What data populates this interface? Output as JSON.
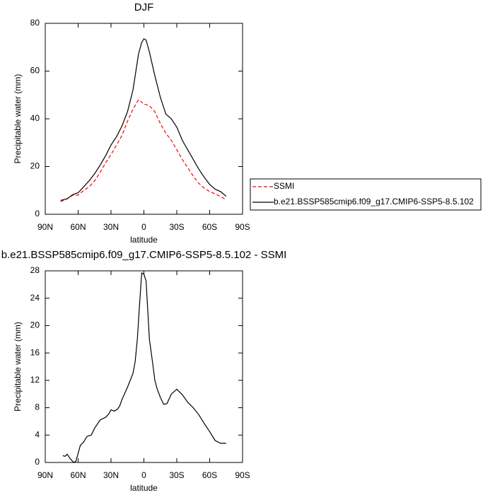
{
  "chart_data": [
    {
      "type": "line",
      "title": "DJF",
      "xlabel": "latitude",
      "ylabel": "Precipitable water (mm)",
      "x": [
        76,
        70,
        65,
        60,
        55,
        50,
        45,
        40,
        35,
        30,
        25,
        20,
        15,
        10,
        5,
        2,
        0,
        -2,
        -5,
        -10,
        -15,
        -20,
        -25,
        -30,
        -35,
        -40,
        -45,
        -50,
        -55,
        -60,
        -65,
        -70,
        -75
      ],
      "xlim": [
        90,
        -90
      ],
      "xticks": [
        {
          "value": 90,
          "label": "90N"
        },
        {
          "value": 60,
          "label": "60N"
        },
        {
          "value": 30,
          "label": "30N"
        },
        0,
        {
          "value": -30,
          "label": "30S"
        },
        {
          "value": -60,
          "label": "60S"
        },
        {
          "value": -90,
          "label": "90S"
        }
      ],
      "ylim": [
        0,
        80
      ],
      "yticks": [
        0,
        20,
        40,
        60,
        80
      ],
      "legend": "right",
      "series": [
        {
          "name": "SSMI",
          "color": "#ff0000",
          "line_style": "dashed",
          "values": [
            5.3,
            6.5,
            8,
            8,
            10,
            11.5,
            14,
            17.5,
            21.5,
            25,
            29,
            33,
            39,
            44,
            48,
            47,
            46,
            46,
            45.5,
            43,
            38,
            34,
            31,
            27,
            23,
            19.5,
            16,
            13,
            11,
            9.5,
            8.5,
            7.5,
            6
          ]
        },
        {
          "name": "b.e21.BSSP585cmip6.f09_g17.CMIP6-SSP5-8.5.102",
          "color": "#000000",
          "line_style": "solid",
          "values": [
            5.8,
            6.5,
            8.2,
            9,
            11.5,
            14,
            17,
            20.5,
            24.5,
            29,
            32.5,
            37,
            43,
            52,
            67,
            72,
            73.5,
            73,
            68,
            58,
            49,
            42,
            40,
            36.5,
            31,
            27,
            23,
            19,
            15.5,
            12.5,
            10.5,
            9.5,
            7.5
          ]
        }
      ]
    },
    {
      "type": "line",
      "title": "b.e21.BSSP585cmip6.f09_g17.CMIP6-SSP5-8.5.102 - SSMI",
      "xlabel": "latitude",
      "ylabel": "Precipitable water (mm)",
      "x": [
        74,
        72,
        70,
        67,
        64,
        62,
        58,
        55,
        52,
        48,
        45,
        40,
        35,
        32,
        30,
        27,
        24,
        22,
        20,
        15,
        10,
        8,
        6,
        4,
        2,
        0,
        -2,
        -5,
        -8,
        -10,
        -12,
        -15,
        -18,
        -21,
        -25,
        -30,
        -35,
        -40,
        -45,
        -50,
        -55,
        -60,
        -65,
        -70,
        -72,
        -75
      ],
      "xlim": [
        90,
        -90
      ],
      "xticks": [
        {
          "value": 90,
          "label": "90N"
        },
        {
          "value": 60,
          "label": "60N"
        },
        {
          "value": 30,
          "label": "30N"
        },
        0,
        {
          "value": -30,
          "label": "30S"
        },
        {
          "value": -60,
          "label": "60S"
        },
        {
          "value": -90,
          "label": "90S"
        }
      ],
      "ylim": [
        0,
        28
      ],
      "yticks": [
        0,
        4,
        8,
        12,
        16,
        20,
        24,
        28
      ],
      "series": [
        {
          "color": "#000000",
          "line_style": "solid",
          "values": [
            1,
            0.9,
            1.2,
            0.5,
            0,
            0.2,
            2.5,
            3,
            3.8,
            4,
            5,
            6.2,
            6.6,
            7.1,
            7.7,
            7.5,
            7.8,
            8.3,
            9.2,
            11,
            13,
            14.7,
            18,
            23,
            27.7,
            27.5,
            26.5,
            18,
            14.5,
            12,
            10.8,
            9.5,
            8.5,
            8.6,
            10,
            10.7,
            9.9,
            8.8,
            8,
            7,
            5.7,
            4.5,
            3.2,
            2.8,
            2.8,
            2.8
          ]
        }
      ]
    }
  ]
}
